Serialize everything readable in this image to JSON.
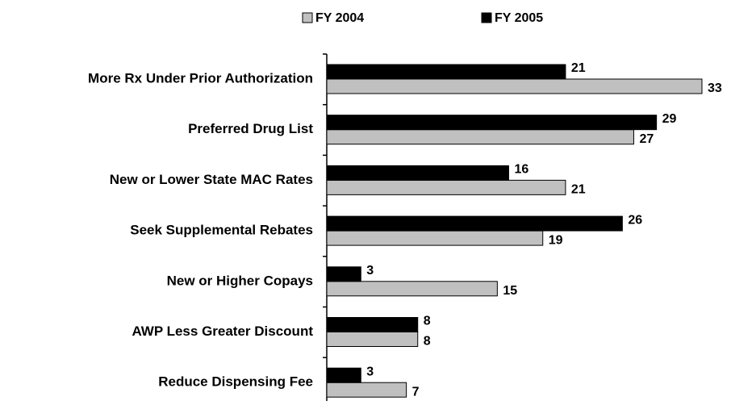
{
  "chart_data": {
    "type": "barh",
    "categories": [
      "More Rx Under Prior Authorization",
      "Preferred Drug List",
      "New or Lower State MAC Rates",
      "Seek Supplemental Rebates",
      "New or Higher Copays",
      "AWP Less Greater Discount",
      "Reduce Dispensing Fee"
    ],
    "series": [
      {
        "name": "FY 2004",
        "color": "#c0c0c0",
        "values": [
          33,
          27,
          21,
          19,
          15,
          8,
          7
        ]
      },
      {
        "name": "FY 2005",
        "color": "#000000",
        "values": [
          21,
          29,
          16,
          26,
          3,
          8,
          3
        ]
      }
    ],
    "xlim": [
      0,
      33
    ]
  }
}
